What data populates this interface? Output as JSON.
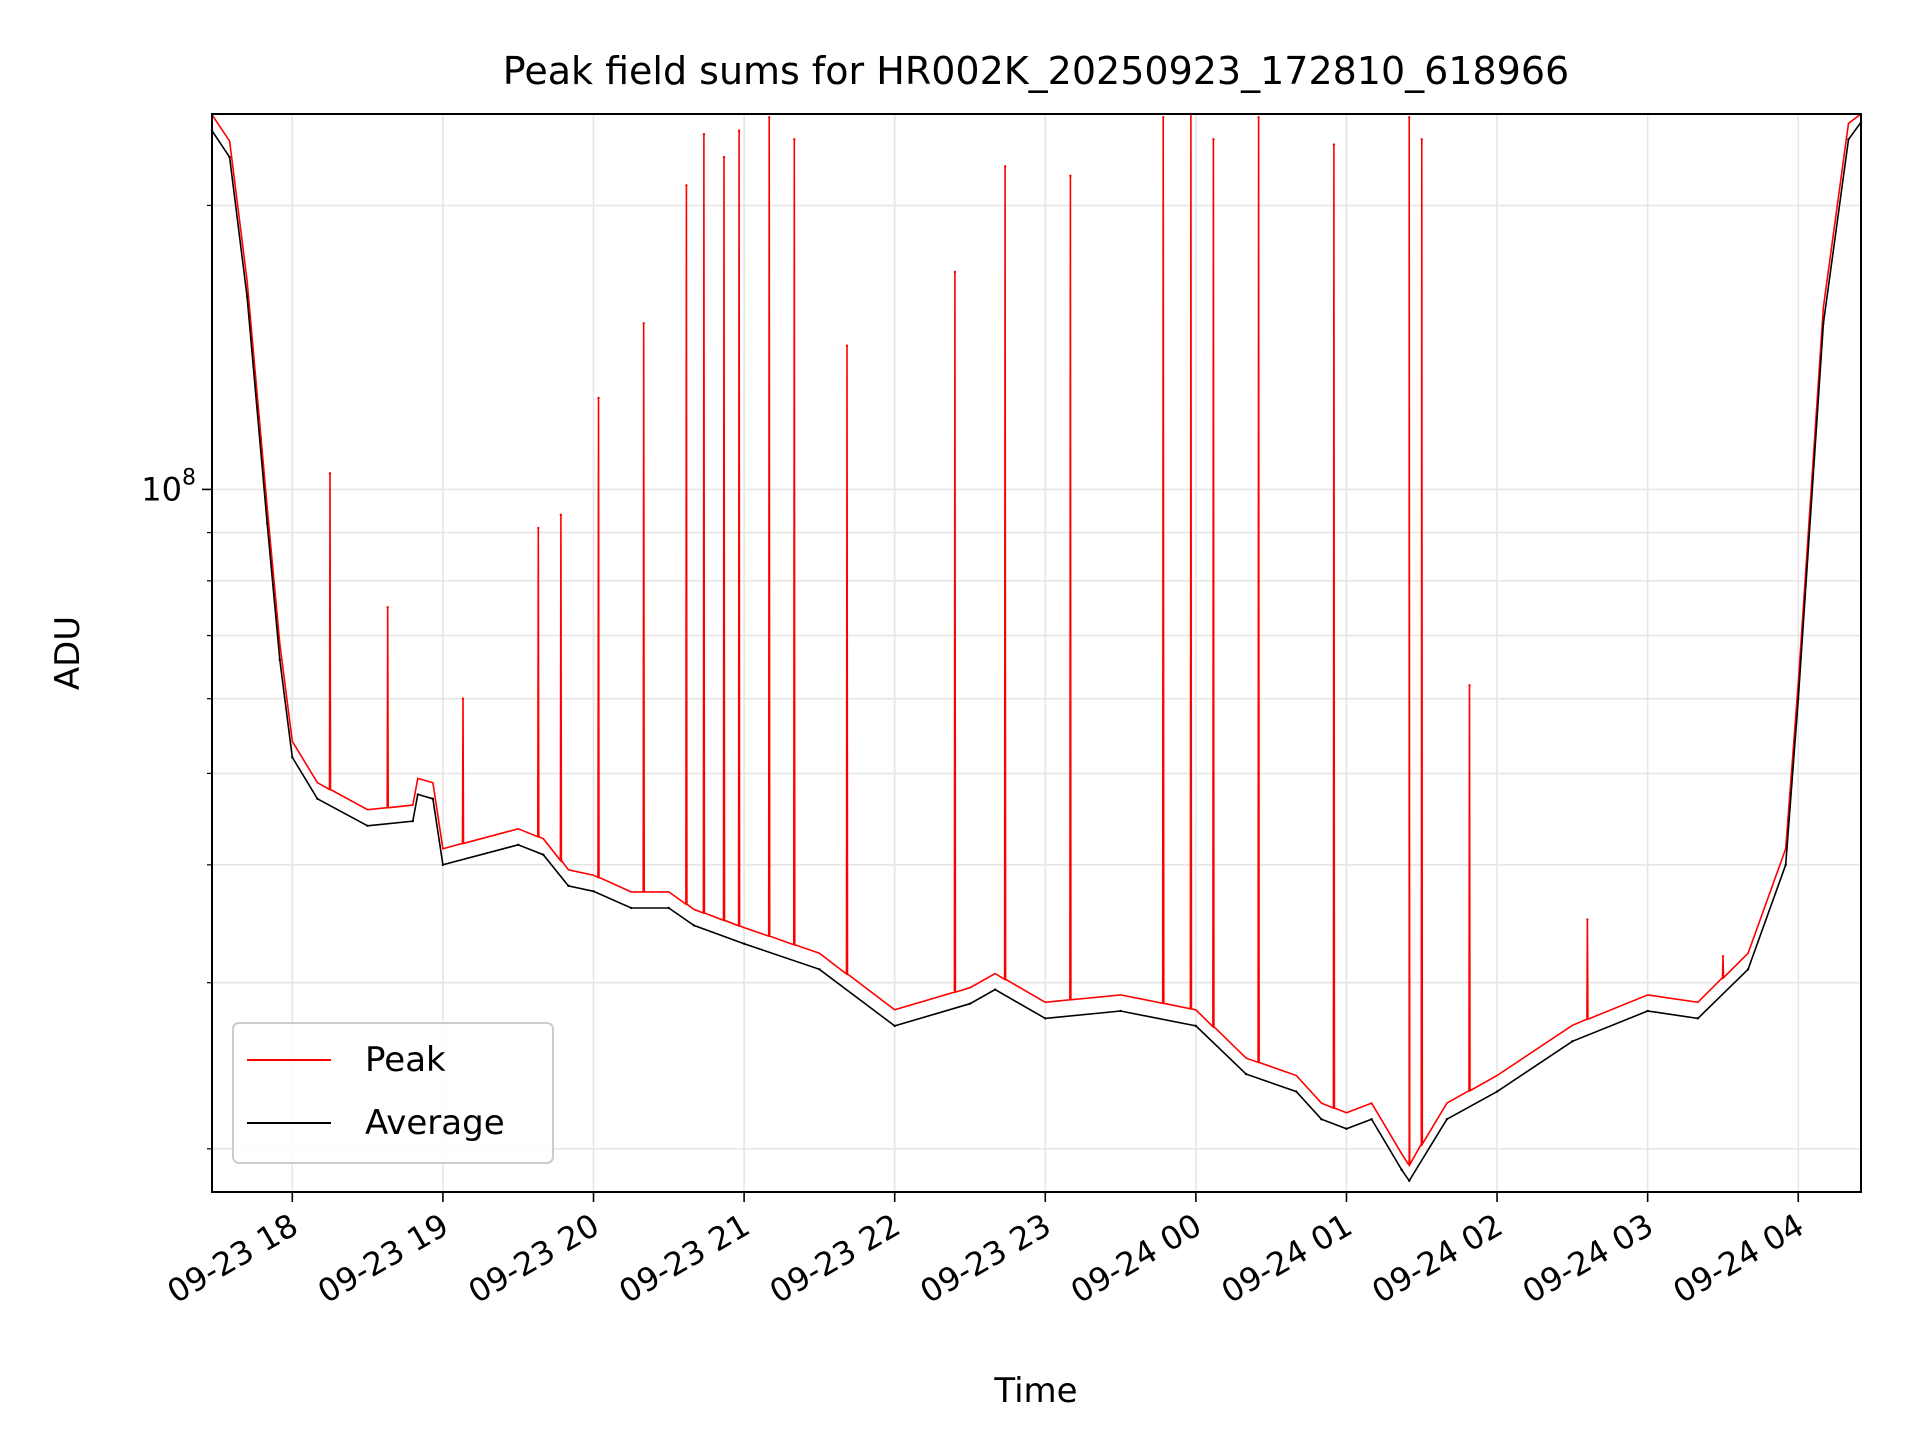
{
  "chart_data": {
    "type": "line",
    "title": "Peak field sums for HR002K_20250923_172810_618966",
    "xlabel": "Time",
    "ylabel": "ADU",
    "y_scale": "log",
    "y_major_tick_label": "10^8",
    "ylim": [
      18000000,
      250000000
    ],
    "xlim": [
      "2025-09-23 17:28",
      "2025-09-24 04:25"
    ],
    "xticks": [
      "09-23 18",
      "09-23 19",
      "09-23 20",
      "09-23 21",
      "09-23 22",
      "09-23 23",
      "09-24 00",
      "09-24 01",
      "09-24 02",
      "09-24 03",
      "09-24 04"
    ],
    "grid": true,
    "legend": {
      "placement": "lower-left",
      "entries": [
        "Peak",
        "Average"
      ]
    },
    "series": [
      {
        "name": "Average",
        "color": "#000000",
        "x": [
          "2025-09-23 17:28",
          "2025-09-23 17:35",
          "2025-09-23 17:42",
          "2025-09-23 17:50",
          "2025-09-23 17:55",
          "2025-09-23 18:00",
          "2025-09-23 18:10",
          "2025-09-23 18:30",
          "2025-09-23 18:48",
          "2025-09-23 18:50",
          "2025-09-23 18:56",
          "2025-09-23 19:00",
          "2025-09-23 19:30",
          "2025-09-23 19:40",
          "2025-09-23 19:50",
          "2025-09-23 20:00",
          "2025-09-23 20:15",
          "2025-09-23 20:30",
          "2025-09-23 20:40",
          "2025-09-23 21:00",
          "2025-09-23 21:30",
          "2025-09-23 22:00",
          "2025-09-23 22:30",
          "2025-09-23 22:40",
          "2025-09-23 23:00",
          "2025-09-23 23:30",
          "2025-09-24 00:00",
          "2025-09-24 00:20",
          "2025-09-24 00:40",
          "2025-09-24 00:50",
          "2025-09-24 01:00",
          "2025-09-24 01:10",
          "2025-09-24 01:22",
          "2025-09-24 01:25",
          "2025-09-24 01:40",
          "2025-09-24 02:00",
          "2025-09-24 02:30",
          "2025-09-24 03:00",
          "2025-09-24 03:20",
          "2025-09-24 03:40",
          "2025-09-24 03:55",
          "2025-09-24 04:00",
          "2025-09-24 04:10",
          "2025-09-24 04:20",
          "2025-09-24 04:25"
        ],
        "y": [
          240000000,
          225000000,
          160000000,
          92000000,
          66000000,
          52000000,
          47000000,
          44000000,
          44500000,
          47500000,
          47000000,
          40000000,
          42000000,
          41000000,
          38000000,
          37500000,
          36000000,
          36000000,
          34500000,
          33000000,
          31000000,
          27000000,
          28500000,
          29500000,
          27500000,
          28000000,
          27000000,
          24000000,
          23000000,
          21500000,
          21000000,
          21500000,
          19000000,
          18500000,
          21500000,
          23000000,
          26000000,
          28000000,
          27500000,
          31000000,
          40000000,
          60000000,
          150000000,
          235000000,
          245000000
        ]
      },
      {
        "name": "Peak",
        "color": "#ff0000",
        "x": [
          "2025-09-23 18:15",
          "2025-09-23 18:38",
          "2025-09-23 19:08",
          "2025-09-23 19:38",
          "2025-09-23 19:47",
          "2025-09-23 20:02",
          "2025-09-23 20:20",
          "2025-09-23 20:37",
          "2025-09-23 20:44",
          "2025-09-23 20:52",
          "2025-09-23 20:58",
          "2025-09-23 21:10",
          "2025-09-23 21:20",
          "2025-09-23 21:41",
          "2025-09-23 22:24",
          "2025-09-23 22:44",
          "2025-09-23 23:10",
          "2025-09-23 23:47",
          "2025-09-23 23:58",
          "2025-09-24 00:07",
          "2025-09-24 00:25",
          "2025-09-24 00:55",
          "2025-09-24 01:25",
          "2025-09-24 01:30",
          "2025-09-24 01:49",
          "2025-09-24 02:36",
          "2025-09-24 03:30"
        ],
        "y": [
          104000000,
          75000000,
          60000000,
          91000000,
          94000000,
          125000000,
          150000000,
          210000000,
          238000000,
          225000000,
          240000000,
          248000000,
          235000000,
          142000000,
          170000000,
          220000000,
          215000000,
          248000000,
          250000000,
          235000000,
          248000000,
          232000000,
          248000000,
          235000000,
          62000000,
          35000000,
          32000000
        ]
      }
    ]
  }
}
